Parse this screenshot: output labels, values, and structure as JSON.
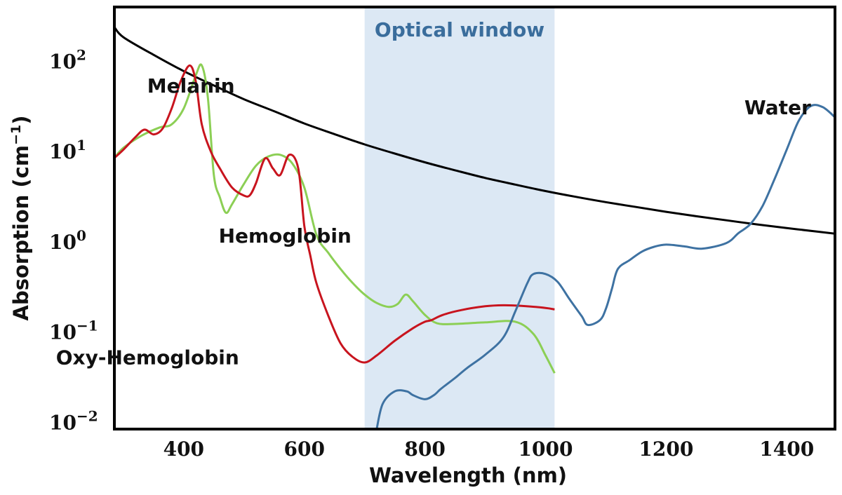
{
  "chart_data": {
    "type": "line",
    "xlabel": "Wavelength (nm)",
    "ylabel_main": "Absorption (cm",
    "ylabel_sup": "−1",
    "ylabel_end": ")",
    "yscale": "log",
    "xlim": [
      285,
      1480
    ],
    "ylim": [
      0.0084,
      400
    ],
    "xticks": [
      400,
      600,
      800,
      1000,
      1200,
      1400
    ],
    "yticks": [
      {
        "value": 0.01,
        "base": "10",
        "exp": "−2"
      },
      {
        "value": 0.1,
        "base": "10",
        "exp": "−1"
      },
      {
        "value": 1,
        "base": "10",
        "exp": "0"
      },
      {
        "value": 10,
        "base": "10",
        "exp": "1"
      },
      {
        "value": 100,
        "base": "10",
        "exp": "2"
      }
    ],
    "grid": false,
    "legend": "none",
    "shaded_region": {
      "label": "Optical window",
      "x": [
        700,
        1015
      ],
      "color": "#dce8f4",
      "label_color": "#3a6d9c"
    },
    "series": [
      {
        "name": "Melanin",
        "color": "#000000",
        "x": [
          285,
          300,
          350,
          400,
          450,
          500,
          550,
          600,
          650,
          700,
          750,
          800,
          850,
          900,
          950,
          1000,
          1050,
          1100,
          1150,
          1200,
          1250,
          1300,
          1350,
          1400,
          1450,
          1480
        ],
        "y": [
          240,
          185,
          118,
          78,
          54,
          38,
          28,
          20.5,
          15.6,
          12,
          9.5,
          7.6,
          6.2,
          5.1,
          4.3,
          3.65,
          3.15,
          2.75,
          2.43,
          2.15,
          1.92,
          1.73,
          1.56,
          1.42,
          1.3,
          1.23
        ]
      },
      {
        "name": "Hemoglobin",
        "color": "#8ccf55",
        "x": [
          285,
          300,
          330,
          360,
          380,
          400,
          420,
          430,
          440,
          450,
          460,
          470,
          480,
          500,
          520,
          540,
          560,
          580,
          600,
          620,
          640,
          660,
          680,
          700,
          720,
          740,
          755,
          768,
          780,
          800,
          820,
          850,
          900,
          950,
          980,
          1000,
          1015
        ],
        "y": [
          8.5,
          11,
          15,
          18.5,
          20,
          30,
          70,
          90,
          40,
          5.5,
          3.1,
          2.1,
          2.6,
          4.4,
          7,
          8.8,
          9.2,
          7.4,
          4.0,
          1.2,
          0.75,
          0.5,
          0.35,
          0.26,
          0.21,
          0.19,
          0.205,
          0.26,
          0.22,
          0.155,
          0.125,
          0.123,
          0.128,
          0.13,
          0.095,
          0.055,
          0.035
        ]
      },
      {
        "name": "Oxy-Hemoglobin",
        "color": "#c8141e",
        "x": [
          285,
          300,
          320,
          335,
          350,
          365,
          380,
          395,
          410,
          420,
          430,
          445,
          460,
          480,
          500,
          510,
          520,
          535,
          548,
          560,
          575,
          590,
          600,
          610,
          620,
          640,
          660,
          680,
          700,
          720,
          750,
          780,
          800,
          810,
          830,
          860,
          900,
          930,
          960,
          1000,
          1015
        ],
        "y": [
          8.5,
          10.5,
          14.5,
          17.5,
          15.5,
          18,
          30,
          60,
          90,
          60,
          20,
          10,
          6.5,
          4.0,
          3.25,
          3.3,
          4.5,
          8.4,
          6.5,
          5.5,
          9.2,
          6.5,
          1.5,
          0.7,
          0.35,
          0.15,
          0.075,
          0.053,
          0.046,
          0.055,
          0.08,
          0.11,
          0.13,
          0.135,
          0.155,
          0.175,
          0.193,
          0.198,
          0.195,
          0.185,
          0.178
        ]
      },
      {
        "name": "Water",
        "color": "#3e72a2",
        "x": [
          720,
          730,
          750,
          770,
          780,
          800,
          815,
          825,
          835,
          850,
          870,
          900,
          930,
          950,
          970,
          980,
          1000,
          1020,
          1040,
          1060,
          1070,
          1090,
          1100,
          1110,
          1120,
          1140,
          1160,
          1180,
          1200,
          1230,
          1260,
          1300,
          1320,
          1340,
          1360,
          1380,
          1400,
          1420,
          1440,
          1460,
          1480
        ],
        "y": [
          0.0084,
          0.016,
          0.022,
          0.022,
          0.02,
          0.018,
          0.02,
          0.023,
          0.026,
          0.031,
          0.04,
          0.056,
          0.087,
          0.17,
          0.35,
          0.44,
          0.44,
          0.36,
          0.23,
          0.15,
          0.12,
          0.135,
          0.18,
          0.3,
          0.5,
          0.63,
          0.78,
          0.88,
          0.93,
          0.89,
          0.84,
          0.97,
          1.25,
          1.58,
          2.5,
          5.0,
          10.5,
          22,
          32,
          31,
          24
        ]
      }
    ],
    "annotations": [
      {
        "text": "Melanin",
        "x": 412,
        "y": 45
      },
      {
        "text": "Hemoglobin",
        "x": 568,
        "y": 0.98
      },
      {
        "text": "Oxy-Hemoglobin",
        "x": 340,
        "y": 0.044
      },
      {
        "text": "Water",
        "x": 1385,
        "y": 26
      }
    ]
  }
}
